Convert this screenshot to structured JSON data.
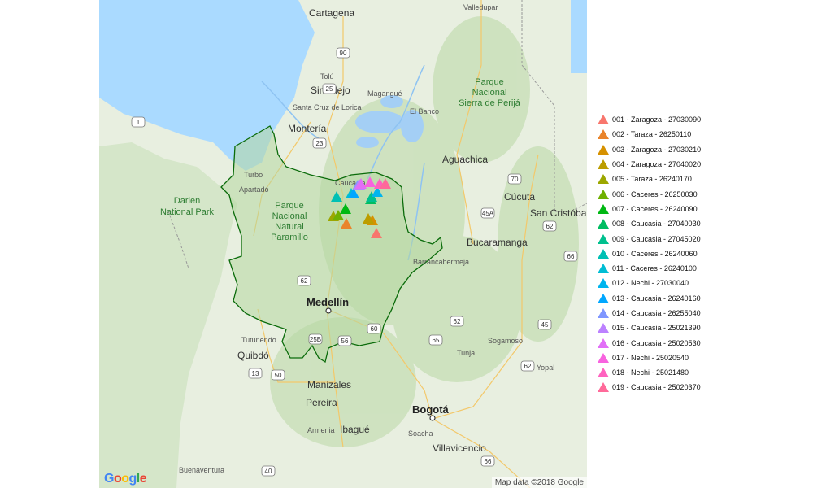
{
  "map": {
    "cities": [
      {
        "name": "Cartagena",
        "size": "mid"
      },
      {
        "name": "Valledupar",
        "size": "mid"
      },
      {
        "name": "Tolú",
        "size": "small"
      },
      {
        "name": "Sincelejo",
        "size": "mid"
      },
      {
        "name": "Magangué",
        "size": "small"
      },
      {
        "name": "Santa Cruz de Lorica",
        "size": "small"
      },
      {
        "name": "El Banco",
        "size": "small"
      },
      {
        "name": "Montería",
        "size": "mid"
      },
      {
        "name": "Aguachica",
        "size": "mid"
      },
      {
        "name": "Turbo",
        "size": "small"
      },
      {
        "name": "Apartadó",
        "size": "small"
      },
      {
        "name": "Caucasia",
        "size": "small"
      },
      {
        "name": "Cúcuta",
        "size": "mid"
      },
      {
        "name": "San Cristóbal",
        "size": "mid"
      },
      {
        "name": "Bucaramanga",
        "size": "mid"
      },
      {
        "name": "Barrancabermeja",
        "size": "small"
      },
      {
        "name": "Medellín",
        "size": "big"
      },
      {
        "name": "Tutunendo",
        "size": "small"
      },
      {
        "name": "Quibdó",
        "size": "mid"
      },
      {
        "name": "Sogamoso",
        "size": "small"
      },
      {
        "name": "Tunja",
        "size": "small"
      },
      {
        "name": "Yopal",
        "size": "small"
      },
      {
        "name": "Manizales",
        "size": "mid"
      },
      {
        "name": "Pereira",
        "size": "mid"
      },
      {
        "name": "Armenia",
        "size": "small"
      },
      {
        "name": "Ibagué",
        "size": "mid"
      },
      {
        "name": "Bogotá",
        "size": "big"
      },
      {
        "name": "Soacha",
        "size": "small"
      },
      {
        "name": "Villavicencio",
        "size": "mid"
      },
      {
        "name": "Buenaventura",
        "size": "small"
      }
    ],
    "parks": [
      {
        "lines": [
          "Parque",
          "Nacional",
          "Sierra de Perijá"
        ]
      },
      {
        "lines": [
          "Darien",
          "National Park"
        ]
      },
      {
        "lines": [
          "Parque",
          "Nacional",
          "Natural",
          "Paramillo"
        ]
      }
    ],
    "road_shields": [
      "90",
      "25",
      "23",
      "1",
      "70",
      "45A",
      "62",
      "66",
      "62",
      "60",
      "25B",
      "56",
      "13",
      "50",
      "62",
      "62",
      "65",
      "45",
      "40",
      "66"
    ],
    "attribution": "Map data ©2018 Google",
    "logo": "Google"
  },
  "markers": [
    {
      "label": "001 - Zaragoza - 27030090",
      "color": "#F8766D"
    },
    {
      "label": "002 - Taraza - 26250110",
      "color": "#E9842C"
    },
    {
      "label": "003 - Zaragoza - 27030210",
      "color": "#D69100"
    },
    {
      "label": "004 - Zaragoza - 27040020",
      "color": "#BC9D00"
    },
    {
      "label": "005 - Taraza - 26240170",
      "color": "#9CA700"
    },
    {
      "label": "006 - Caceres - 26250030",
      "color": "#6FB000"
    },
    {
      "label": "007 - Caceres - 26240090",
      "color": "#00B813"
    },
    {
      "label": "008 - Caucasia - 27040030",
      "color": "#00BD61"
    },
    {
      "label": "009 - Caucasia - 27045020",
      "color": "#00C08E"
    },
    {
      "label": "010 - Caceres - 26240060",
      "color": "#00C0B4"
    },
    {
      "label": "011 - Caceres - 26240100",
      "color": "#00BDD4"
    },
    {
      "label": "012 - Nechi - 27030040",
      "color": "#00B5EE"
    },
    {
      "label": "013 - Caucasia - 26240160",
      "color": "#00A7FF"
    },
    {
      "label": "014 - Caucasia - 26255040",
      "color": "#7F96FF"
    },
    {
      "label": "015 - Caucasia - 25021390",
      "color": "#BC81FF"
    },
    {
      "label": "016 - Caucasia - 25020530",
      "color": "#E26EF7"
    },
    {
      "label": "017 - Nechi - 25020540",
      "color": "#F863DF"
    },
    {
      "label": "018 - Nechi - 25021480",
      "color": "#FF62BF"
    },
    {
      "label": "019 - Caucasia - 25020370",
      "color": "#FF6A9A"
    }
  ]
}
